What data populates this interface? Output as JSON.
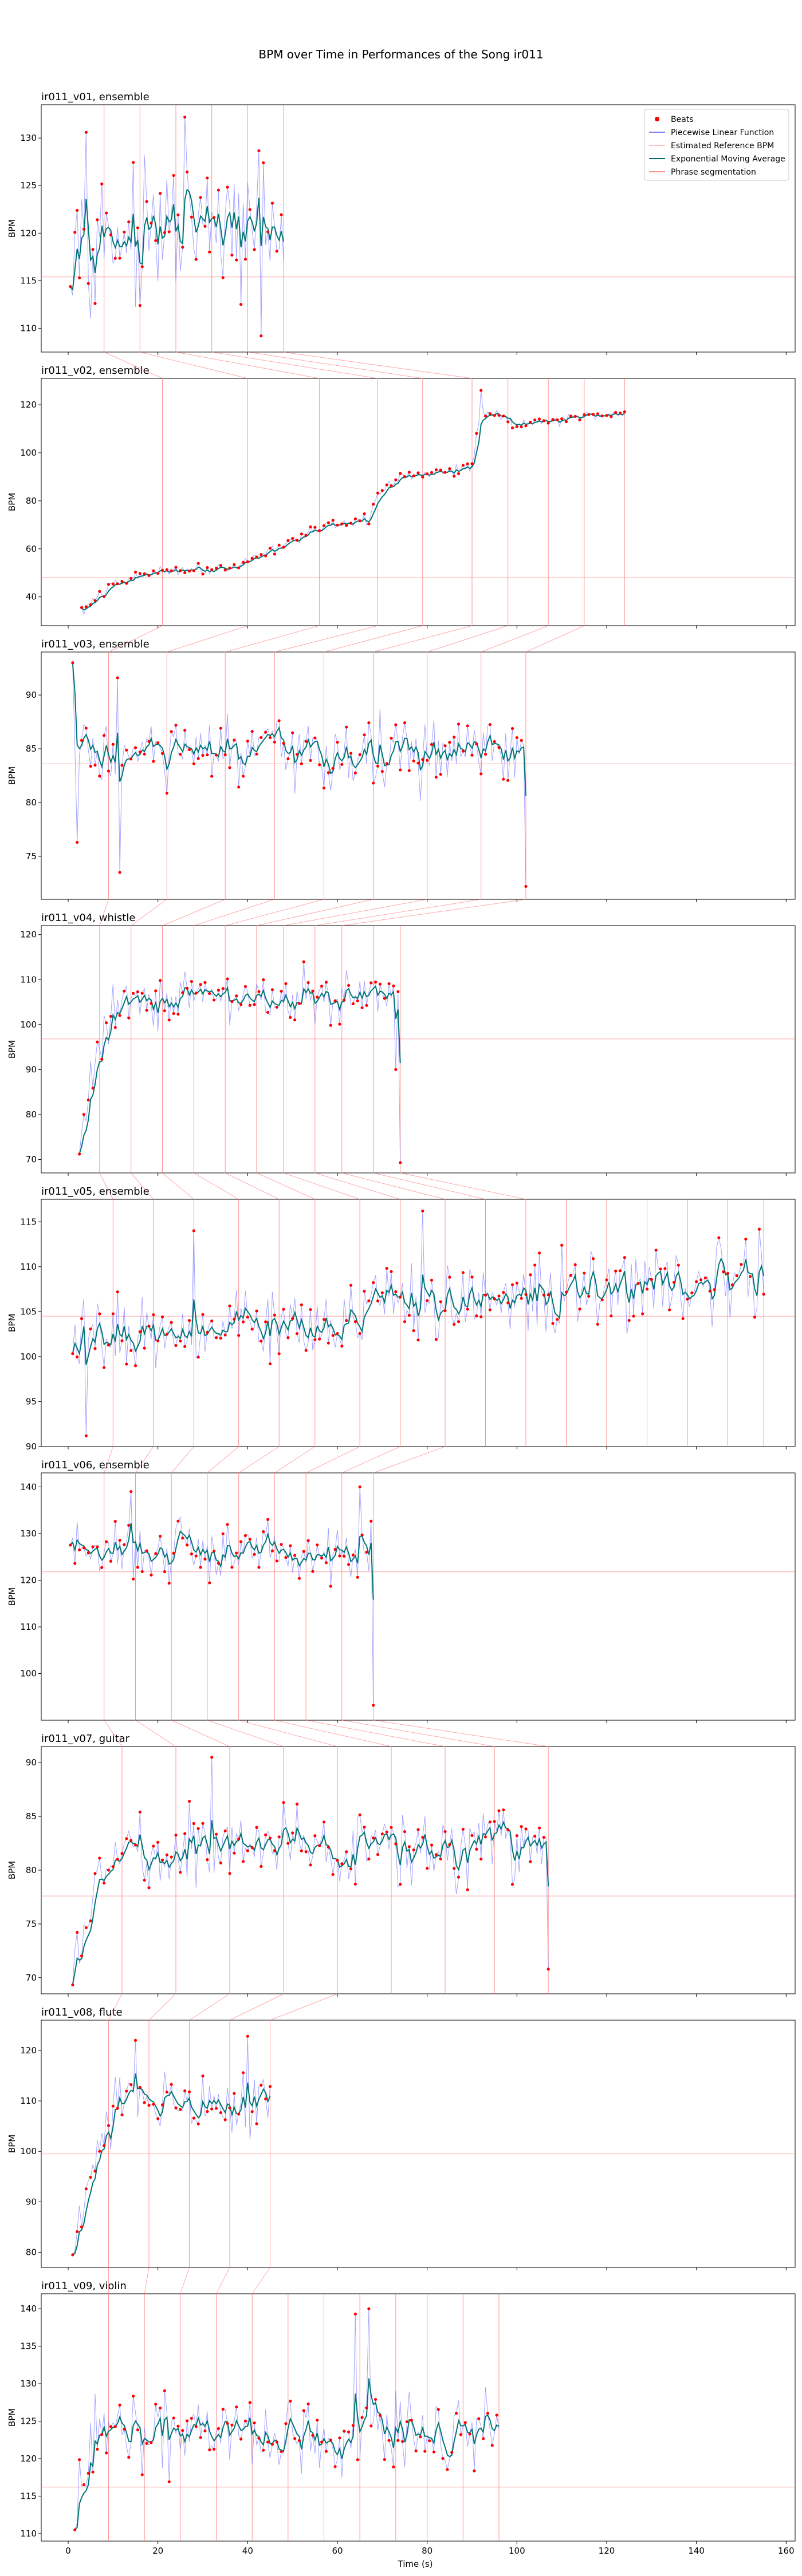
{
  "chart_data": {
    "type": "line",
    "title": "BPM over Time in Performances of the Song ir011",
    "xlabel": "Time (s)",
    "xlim": [
      -6,
      162
    ],
    "xticks": [
      0,
      20,
      40,
      60,
      80,
      100,
      120,
      140,
      160
    ],
    "legend": {
      "placement": "top-right",
      "entries": [
        {
          "label": "Beats",
          "kind": "dot",
          "color": "#ff0000"
        },
        {
          "label": "Piecewise Linear Function",
          "kind": "line",
          "color": "#8080ff"
        },
        {
          "label": "Estimated Reference BPM",
          "kind": "line",
          "color": "#ffc0c0"
        },
        {
          "label": "Exponential Moving Average",
          "kind": "line",
          "color": "#007070"
        },
        {
          "label": "Phrase segmentation",
          "kind": "line",
          "color": "#ff9090"
        }
      ]
    },
    "colors": {
      "beats": "#ff0000",
      "piecewise": "#6666ff",
      "reference": "#ff8080",
      "ema": "#007575",
      "phrase": "#ff6f6f",
      "connector": "#ff6f6f"
    },
    "panels": [
      {
        "title": "ir011_v01, ensemble",
        "ylabel": "BPM",
        "ylim": [
          107.5,
          133.5
        ],
        "yticks": [
          110,
          115,
          120,
          125,
          130
        ],
        "reference_bpm": 115.4,
        "t_start": 0.5,
        "t_end": 48,
        "duration": 48,
        "phrases": [
          8,
          16,
          24,
          32,
          40,
          48
        ],
        "pattern": "flat",
        "base": 120,
        "spread": 3.2,
        "beats": [
          {
            "t": 2,
            "bpm": 122.4
          },
          {
            "t": 4,
            "bpm": 130.6
          },
          {
            "t": 6,
            "bpm": 112.6
          },
          {
            "t": 16,
            "bpm": 112.4
          },
          {
            "t": 26,
            "bpm": 132.2
          },
          {
            "t": 31,
            "bpm": 125.8
          },
          {
            "t": 43,
            "bpm": 109.2
          },
          {
            "t": 43.5,
            "bpm": 127.4
          }
        ]
      },
      {
        "title": "ir011_v02, ensemble",
        "ylabel": "BPM",
        "ylim": [
          28,
          131
        ],
        "yticks": [
          40,
          60,
          80,
          100,
          120
        ],
        "reference_bpm": 48,
        "t_start": 3,
        "t_end": 124,
        "duration": 124,
        "phrases": [
          21,
          40,
          56,
          69,
          79,
          90,
          98,
          107,
          115,
          124
        ],
        "pattern": "ramp",
        "ramp": [
          [
            3,
            34
          ],
          [
            10,
            45
          ],
          [
            20,
            51
          ],
          [
            35,
            52
          ],
          [
            40,
            55
          ],
          [
            55,
            68
          ],
          [
            67,
            72
          ],
          [
            69,
            83
          ],
          [
            74,
            90
          ],
          [
            85,
            92
          ],
          [
            90,
            95
          ],
          [
            92,
            118
          ],
          [
            100,
            112
          ],
          [
            124,
            117
          ]
        ],
        "spread": 1.8,
        "beats": [
          {
            "t": 92,
            "bpm": 126
          }
        ]
      },
      {
        "title": "ir011_v03, ensemble",
        "ylabel": "BPM",
        "ylim": [
          71,
          94
        ],
        "yticks": [
          75,
          80,
          85,
          90
        ],
        "reference_bpm": 83.6,
        "t_start": 1,
        "t_end": 102,
        "duration": 102,
        "phrases": [
          9,
          22,
          35,
          46,
          57,
          68,
          80,
          92,
          102
        ],
        "pattern": "flat",
        "base": 84.5,
        "spread": 1.8,
        "beats": [
          {
            "t": 1,
            "bpm": 93
          },
          {
            "t": 2,
            "bpm": 76.3
          },
          {
            "t": 11,
            "bpm": 91.6
          },
          {
            "t": 11.5,
            "bpm": 73.5
          },
          {
            "t": 102,
            "bpm": 72.2
          }
        ]
      },
      {
        "title": "ir011_v04, whistle",
        "ylabel": "BPM",
        "ylim": [
          67,
          122
        ],
        "yticks": [
          70,
          80,
          90,
          100,
          110,
          120
        ],
        "reference_bpm": 96.8,
        "t_start": 2.5,
        "t_end": 74,
        "duration": 74,
        "phrases": [
          7,
          14,
          21,
          28,
          35,
          42,
          48,
          55,
          61,
          68,
          74
        ],
        "pattern": "rise",
        "base": 106,
        "rise_from": 71,
        "rise_time": 10,
        "spread": 3.2,
        "beats": [
          {
            "t": 2.5,
            "bpm": 71.2
          },
          {
            "t": 73,
            "bpm": 90
          },
          {
            "t": 74,
            "bpm": 69.3
          }
        ]
      },
      {
        "title": "ir011_v05, ensemble",
        "ylabel": "BPM",
        "ylim": [
          90,
          117.5
        ],
        "yticks": [
          90,
          95,
          100,
          105,
          110,
          115
        ],
        "reference_bpm": 104.5,
        "t_start": 1,
        "t_end": 155,
        "duration": 155,
        "phrases": [
          10,
          19,
          28,
          38,
          47,
          55,
          65,
          74,
          84,
          93,
          102,
          111,
          120,
          129,
          138,
          147,
          155
        ],
        "pattern": "drift",
        "base_start": 102,
        "base_end": 109,
        "spread": 2.2,
        "beats": [
          {
            "t": 4,
            "bpm": 91.2
          },
          {
            "t": 28,
            "bpm": 114
          },
          {
            "t": 79,
            "bpm": 116.2
          }
        ]
      },
      {
        "title": "ir011_v06, ensemble",
        "ylabel": "BPM",
        "ylim": [
          90,
          143
        ],
        "yticks": [
          100,
          110,
          120,
          130,
          140
        ],
        "reference_bpm": 121.8,
        "t_start": 0.5,
        "t_end": 68,
        "duration": 68,
        "phrases": [
          8,
          15,
          23,
          31,
          38,
          46,
          53,
          61,
          68
        ],
        "pattern": "flat",
        "base": 126,
        "spread": 3.4,
        "beats": [
          {
            "t": 14,
            "bpm": 139
          },
          {
            "t": 65,
            "bpm": 140
          },
          {
            "t": 68,
            "bpm": 93.2
          }
        ]
      },
      {
        "title": "ir011_v07, guitar",
        "ylabel": "BPM",
        "ylim": [
          68.5,
          91.5
        ],
        "yticks": [
          70,
          75,
          80,
          85,
          90
        ],
        "reference_bpm": 77.6,
        "t_start": 1,
        "t_end": 107,
        "duration": 107,
        "phrases": [
          12,
          24,
          36,
          48,
          60,
          72,
          84,
          95,
          107
        ],
        "pattern": "rise",
        "base": 82,
        "rise_from": 69.8,
        "rise_time": 13,
        "spread": 1.8,
        "beats": [
          {
            "t": 32,
            "bpm": 90.5
          },
          {
            "t": 107,
            "bpm": 70.8
          }
        ]
      },
      {
        "title": "ir011_v08, flute",
        "ylabel": "BPM",
        "ylim": [
          77,
          126
        ],
        "yticks": [
          80,
          90,
          100,
          110,
          120
        ],
        "reference_bpm": 99.5,
        "t_start": 1,
        "t_end": 45,
        "duration": 45,
        "phrases": [
          9,
          18,
          27,
          36,
          45
        ],
        "pattern": "rise",
        "base": 110,
        "rise_from": 79.5,
        "rise_time": 11,
        "spread": 3,
        "beats": [
          {
            "t": 1,
            "bpm": 79.5
          },
          {
            "t": 15,
            "bpm": 122
          },
          {
            "t": 40,
            "bpm": 122.8
          }
        ]
      },
      {
        "title": "ir011_v09, violin",
        "ylabel": "BPM",
        "ylim": [
          109,
          142
        ],
        "yticks": [
          110,
          115,
          120,
          125,
          130,
          135,
          140
        ],
        "reference_bpm": 116.2,
        "t_start": 1.5,
        "t_end": 96,
        "duration": 96,
        "phrases": [
          9,
          17,
          25,
          33,
          41,
          49,
          57,
          65,
          73,
          80,
          88,
          96
        ],
        "pattern": "rise",
        "base": 123.5,
        "rise_from": 110.5,
        "rise_time": 6,
        "spread": 2.8,
        "beats": [
          {
            "t": 1.5,
            "bpm": 110.5
          },
          {
            "t": 64,
            "bpm": 139.3
          },
          {
            "t": 67,
            "bpm": 140
          }
        ]
      }
    ]
  }
}
